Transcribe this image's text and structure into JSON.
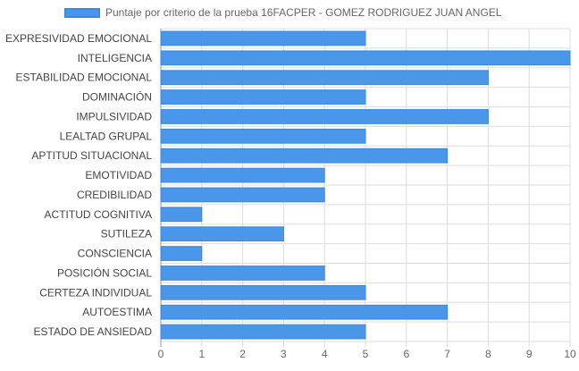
{
  "chart_data": {
    "type": "bar",
    "orientation": "horizontal",
    "categories": [
      "EXPRESIVIDAD EMOCIONAL",
      "INTELIGENCIA",
      "ESTABILIDAD EMOCIONAL",
      "DOMINACIÓN",
      "IMPULSIVIDAD",
      "LEALTAD GRUPAL",
      "APTITUD SITUACIONAL",
      "EMOTIVIDAD",
      "CREDIBILIDAD",
      "ACTITUD COGNITIVA",
      "SUTILEZA",
      "CONSCIENCIA",
      "POSICIÓN SOCIAL",
      "CERTEZA INDIVIDUAL",
      "AUTOESTIMA",
      "ESTADO DE ANSIEDAD"
    ],
    "series": [
      {
        "name": "Puntaje por criterio de la prueba 16FACPER - GOMEZ RODRIGUEZ JUAN ANGEL",
        "values": [
          5,
          10,
          8,
          5,
          8,
          5,
          7,
          4,
          4,
          1,
          3,
          1,
          4,
          5,
          7,
          5
        ]
      }
    ],
    "xlim": [
      0,
      10
    ],
    "xticks": [
      "0",
      "1",
      "2",
      "3",
      "4",
      "5",
      "6",
      "7",
      "8",
      "9",
      "10"
    ],
    "grid": true,
    "legend_position": "top",
    "colors": {
      "bar_fill": "#4a97ea",
      "bar_border": "#3a88e0",
      "grid": "#dddddd",
      "label_text": "#444444",
      "tick_text": "#666666"
    }
  }
}
